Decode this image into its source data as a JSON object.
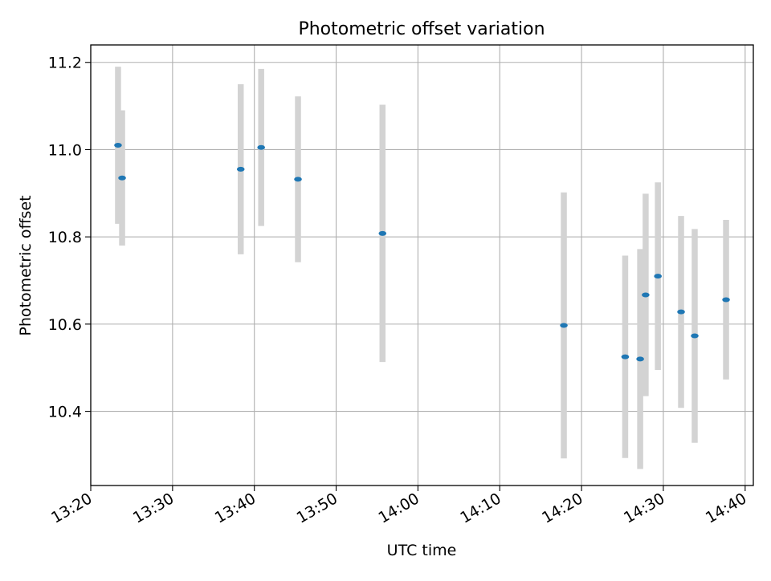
{
  "chart_data": {
    "type": "scatter",
    "title": "Photometric offset variation",
    "xlabel": "UTC time",
    "ylabel": "Photometric offset",
    "x_tick_labels": [
      "13:20",
      "13:30",
      "13:40",
      "13:50",
      "14:00",
      "14:10",
      "14:20",
      "14:30",
      "14:40"
    ],
    "y_tick_labels": [
      "10.4",
      "10.6",
      "10.8",
      "11.0",
      "11.2"
    ],
    "y_ticks": [
      10.4,
      10.6,
      10.8,
      11.0,
      11.2
    ],
    "xlim": [
      "13:20",
      "14:41"
    ],
    "ylim": [
      10.23,
      11.24
    ],
    "grid": true,
    "legend": "none",
    "colors": {
      "marker": "#1f77b4",
      "errorbar": "#d3d3d3",
      "grid": "#b0b0b0"
    },
    "series": [
      {
        "points": [
          {
            "x": "13:23:20",
            "y": 11.01,
            "err": 0.18
          },
          {
            "x": "13:23:50",
            "y": 10.935,
            "err": 0.155
          },
          {
            "x": "13:38:20",
            "y": 10.955,
            "err": 0.195
          },
          {
            "x": "13:40:50",
            "y": 11.005,
            "err": 0.18
          },
          {
            "x": "13:45:20",
            "y": 10.932,
            "err": 0.19
          },
          {
            "x": "13:55:40",
            "y": 10.808,
            "err": 0.295
          },
          {
            "x": "14:17:50",
            "y": 10.597,
            "err": 0.305
          },
          {
            "x": "14:25:20",
            "y": 10.525,
            "err": 0.232
          },
          {
            "x": "14:27:10",
            "y": 10.52,
            "err": 0.252
          },
          {
            "x": "14:27:50",
            "y": 10.667,
            "err": 0.232
          },
          {
            "x": "14:29:20",
            "y": 10.71,
            "err": 0.215
          },
          {
            "x": "14:32:10",
            "y": 10.628,
            "err": 0.22
          },
          {
            "x": "14:33:50",
            "y": 10.573,
            "err": 0.245
          },
          {
            "x": "14:37:40",
            "y": 10.656,
            "err": 0.183
          }
        ]
      }
    ]
  }
}
